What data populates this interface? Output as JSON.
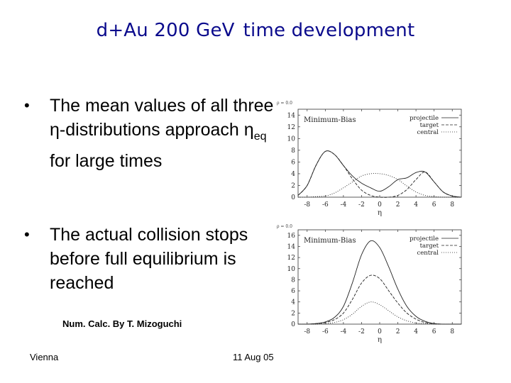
{
  "slide": {
    "title_part1": "d+Au 200 GeV",
    "title_part2": "time development",
    "bullets": [
      {
        "bullet": "•",
        "pre": "The mean values of all three ",
        "eta": "η",
        "mid": "-distributions approach ",
        "eta_sub": "eq",
        "post": " for large times"
      },
      {
        "bullet": "•",
        "text": "The actual collision stops before full equilibrium is reached"
      }
    ],
    "credit": "Num. Calc. By T. Mizoguchi",
    "footer_left": "Vienna",
    "footer_date": "11 Aug 05"
  },
  "chart_data": [
    {
      "type": "line",
      "corner_label": "ρ = 0.0",
      "annotation": "Minimum-Bias",
      "xlabel": "η",
      "xlim": [
        -9,
        9
      ],
      "ylim": [
        0,
        15
      ],
      "x_ticks": [
        "-8",
        "-6",
        "-4",
        "-2",
        "0",
        "2",
        "4",
        "6",
        "8"
      ],
      "y_ticks": [
        "0",
        "2",
        "4",
        "6",
        "8",
        "10",
        "12",
        "14"
      ],
      "legend": [
        "projectile",
        "target",
        "central"
      ],
      "x": [
        -9,
        -8,
        -7,
        -6,
        -5,
        -4,
        -3,
        -2,
        -1,
        0,
        1,
        2,
        3,
        4,
        5,
        6,
        7,
        8,
        9
      ],
      "series": [
        {
          "name": "projectile",
          "style": "solid",
          "values": [
            0.3,
            2.0,
            5.5,
            7.8,
            7.3,
            5.4,
            3.6,
            2.4,
            1.6,
            1.0,
            1.8,
            3.0,
            3.3,
            4.2,
            4.3,
            2.6,
            0.9,
            0.2,
            0.0
          ]
        },
        {
          "name": "target",
          "style": "dashed",
          "values": [
            0.3,
            2.0,
            5.5,
            7.8,
            7.3,
            5.4,
            3.1,
            1.2,
            0.3,
            0.0,
            0.0,
            0.3,
            1.3,
            3.0,
            4.3,
            2.6,
            0.9,
            0.2,
            0.0
          ]
        },
        {
          "name": "central",
          "style": "dotted",
          "values": [
            0.0,
            0.0,
            0.1,
            0.2,
            0.7,
            1.6,
            2.6,
            3.6,
            4.0,
            4.0,
            3.7,
            3.0,
            1.9,
            0.9,
            0.3,
            0.1,
            0.0,
            0.0,
            0.0
          ]
        }
      ]
    },
    {
      "type": "line",
      "corner_label": "ρ = 0.0",
      "annotation": "Minimum-Bias",
      "xlabel": "η",
      "xlim": [
        -9,
        9
      ],
      "ylim": [
        0,
        17
      ],
      "x_ticks": [
        "-8",
        "-6",
        "-4",
        "-2",
        "0",
        "2",
        "4",
        "6",
        "8"
      ],
      "y_ticks": [
        "0",
        "2",
        "4",
        "6",
        "8",
        "10",
        "12",
        "14",
        "16"
      ],
      "legend": [
        "projectile",
        "target",
        "central"
      ],
      "x": [
        -9,
        -8,
        -7,
        -6,
        -5,
        -4,
        -3,
        -2,
        -1,
        0,
        1,
        2,
        3,
        4,
        5,
        6,
        7,
        8,
        9
      ],
      "series": [
        {
          "name": "projectile",
          "style": "solid",
          "values": [
            0.0,
            0.0,
            0.1,
            0.4,
            1.2,
            3.2,
            7.5,
            12.5,
            15.0,
            13.8,
            10.3,
            6.3,
            3.2,
            1.4,
            0.5,
            0.1,
            0.0,
            0.0,
            0.0
          ]
        },
        {
          "name": "target",
          "style": "dashed",
          "values": [
            0.0,
            0.0,
            0.1,
            0.3,
            0.8,
            2.0,
            4.5,
            7.4,
            8.8,
            8.2,
            6.0,
            3.8,
            2.0,
            0.9,
            0.3,
            0.1,
            0.0,
            0.0,
            0.0
          ]
        },
        {
          "name": "central",
          "style": "dotted",
          "values": [
            0.0,
            0.0,
            0.0,
            0.1,
            0.3,
            0.8,
            1.8,
            3.2,
            4.0,
            3.5,
            2.4,
            1.3,
            0.6,
            0.2,
            0.1,
            0.0,
            0.0,
            0.0,
            0.0
          ]
        }
      ]
    }
  ]
}
